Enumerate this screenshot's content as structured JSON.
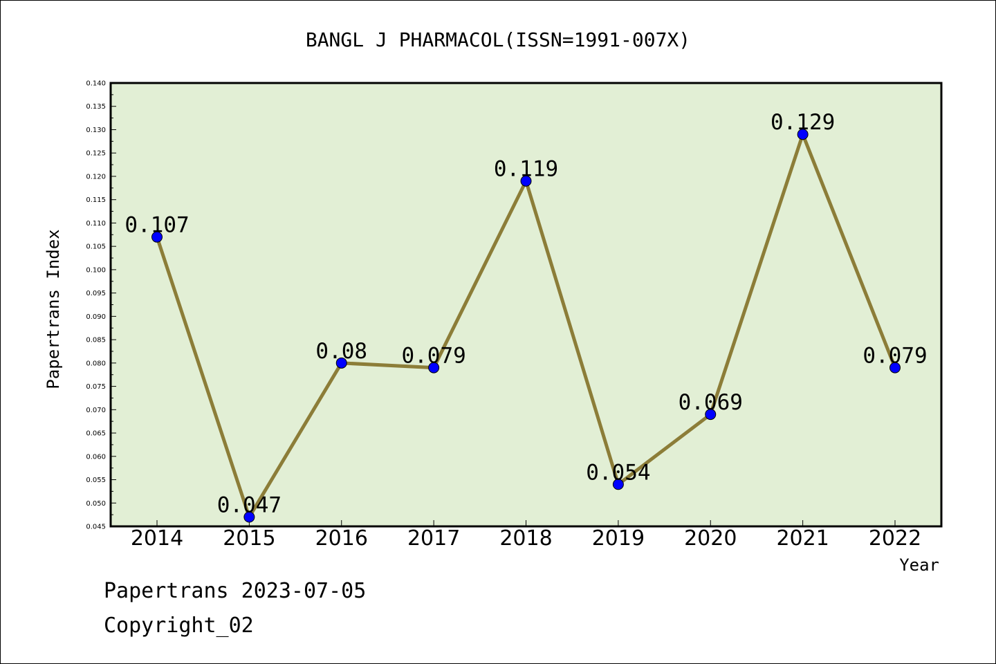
{
  "chart_data": {
    "type": "line",
    "title": "BANGL J PHARMACOL(ISSN=1991-007X)",
    "xlabel": "Year",
    "ylabel": "Papertrans Index",
    "categories": [
      "2014",
      "2015",
      "2016",
      "2017",
      "2018",
      "2019",
      "2020",
      "2021",
      "2022"
    ],
    "series": [
      {
        "values": [
          0.107,
          0.047,
          0.08,
          0.079,
          0.119,
          0.054,
          0.069,
          0.129,
          0.079
        ],
        "labels": [
          "0.107",
          "0.047",
          "0.08",
          "0.079",
          "0.119",
          "0.054",
          "0.069",
          "0.129",
          "0.079"
        ]
      }
    ],
    "ylim": [
      0.045,
      0.14
    ],
    "yticks": [
      "0.045",
      "0.050",
      "0.055",
      "0.060",
      "0.065",
      "0.070",
      "0.075",
      "0.080",
      "0.085",
      "0.090",
      "0.095",
      "0.100",
      "0.105",
      "0.110",
      "0.115",
      "0.120",
      "0.125",
      "0.130",
      "0.135",
      "0.140"
    ],
    "grid": false,
    "colors": {
      "plot_background": "#e2efd5",
      "line": "#8c7d38",
      "marker": "#0000ff"
    }
  },
  "footer": {
    "line1": "Papertrans 2023-07-05",
    "line2": "Copyright_02"
  }
}
